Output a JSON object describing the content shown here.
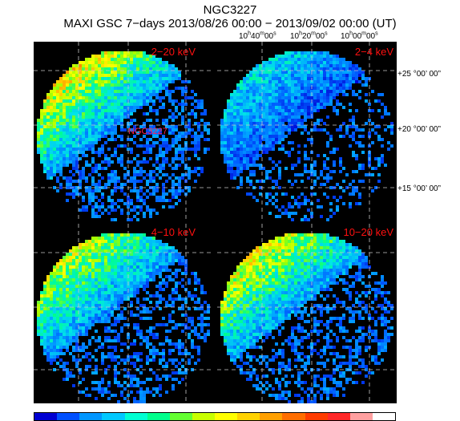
{
  "title": "NGC3227",
  "subtitle": "MAXI GSC 7−days 2013/08/26 00:00 − 2013/09/02 00:00 (UT)",
  "ra_ticks": [
    {
      "h": "10",
      "m": "40",
      "s": "00"
    },
    {
      "h": "10",
      "m": "20",
      "s": "00"
    },
    {
      "h": "10",
      "m": "00",
      "s": "00"
    }
  ],
  "dec_ticks": [
    "+25 °00’ 00”",
    "+20 °00’ 00”",
    "+15 °00’ 00”"
  ],
  "panels": [
    {
      "band": "2−20 keV",
      "source": "NGC3227",
      "bright": 0.58,
      "density": 1.0
    },
    {
      "band": "2−4 keV",
      "source": "",
      "bright": 0.3,
      "density": 0.55
    },
    {
      "band": "4−10 keV",
      "source": "",
      "bright": 0.52,
      "density": 0.75
    },
    {
      "band": "10−20 keV",
      "source": "",
      "bright": 0.56,
      "density": 0.85
    }
  ],
  "colorbar": [
    "#0000d2",
    "#0050ff",
    "#0096ff",
    "#00c8ff",
    "#00ffd2",
    "#00ff8c",
    "#64ff32",
    "#c8ff00",
    "#ffff00",
    "#ffd200",
    "#ffa000",
    "#ff6e00",
    "#ff3c00",
    "#ff2828",
    "#ffa0a0",
    "#ffffff"
  ]
}
